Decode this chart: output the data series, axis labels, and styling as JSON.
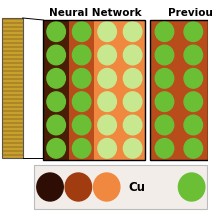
{
  "title_nn": "Neural Network",
  "title_prev": "Previou",
  "bg_color": "#ffffff",
  "stm_color_light": "#c8a030",
  "stm_color_dark": "#7a5a10",
  "dark_brown": "#4a1e06",
  "mid_brown": "#b84c1a",
  "light_orange": "#f08840",
  "green_circle": "#6abf35",
  "light_green": "#c8e890",
  "legend_dark_brown": "#2e0e04",
  "legend_mid_brown": "#a03c10",
  "legend_light_orange": "#f08840",
  "legend_green": "#6abf35",
  "legend_text_color": "#000000",
  "title_fontsize": 7.5,
  "legend_label": "Cu"
}
